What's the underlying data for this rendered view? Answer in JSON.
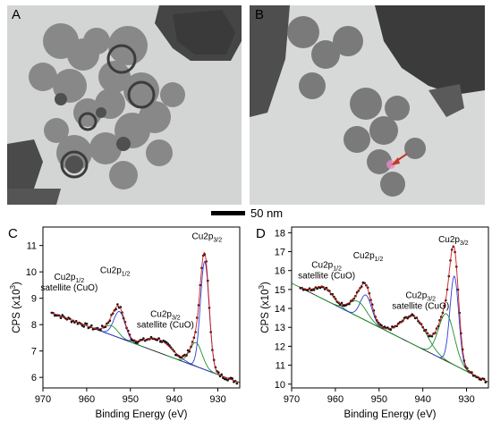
{
  "panels": {
    "a": {
      "letter": "A"
    },
    "b": {
      "letter": "B"
    },
    "c": {
      "letter": "C"
    },
    "d": {
      "letter": "D"
    }
  },
  "scale_bar": {
    "label": "50 nm"
  },
  "colors": {
    "data_points": "#111111",
    "fit_envelope": "#d11b1b",
    "component_1": "#2b3fd6",
    "component_2": "#1f8f2a",
    "background_line": "#1a1a1a",
    "arrow": "#c0392b",
    "tem_background": "#d5d7d6"
  },
  "chart_data": [
    {
      "panel": "C",
      "type": "line",
      "xlabel": "Binding Energy (eV)",
      "ylabel": "CPS (x10",
      "ylabel_sup": "3",
      "ylabel_end": ")",
      "xlim": [
        970,
        925
      ],
      "ylim": [
        5.6,
        11.7
      ],
      "xticks": [
        970,
        960,
        950,
        940,
        930
      ],
      "yticks": [
        6,
        7,
        8,
        9,
        10,
        11
      ],
      "annotations": [
        {
          "base": "Cu2p",
          "sub": "1/2",
          "line2": "satellite (CuO)",
          "x": 964,
          "y": 9.7
        },
        {
          "base": "Cu2p",
          "sub": "1/2",
          "line2": "",
          "x": 953.5,
          "y": 9.95
        },
        {
          "base": "Cu2p",
          "sub": "3/2",
          "line2": "satellite (CuO)",
          "x": 942,
          "y": 8.3
        },
        {
          "base": "Cu2p",
          "sub": "3/2",
          "line2": "",
          "x": 932.5,
          "y": 11.25
        }
      ],
      "background": {
        "x": [
          968,
          925
        ],
        "y": [
          8.45,
          5.8
        ]
      },
      "peaks": [
        {
          "center": 952.5,
          "amplitude": 1.0,
          "width": 1.3,
          "color": "component_1"
        },
        {
          "center": 954.3,
          "amplitude": 0.35,
          "width": 1.5,
          "color": "component_2"
        },
        {
          "center": 943.5,
          "amplitude": 0.5,
          "width": 3.0,
          "color": "component_1"
        },
        {
          "center": 933.0,
          "amplitude": 4.1,
          "width": 1.0,
          "color": "component_1"
        },
        {
          "center": 935.0,
          "amplitude": 0.9,
          "width": 1.4,
          "color": "component_2"
        }
      ]
    },
    {
      "panel": "D",
      "type": "line",
      "xlabel": "Binding Energy (eV)",
      "ylabel": "CPS (x10",
      "ylabel_sup": "3",
      "ylabel_end": ")",
      "xlim": [
        970,
        925
      ],
      "ylim": [
        9.8,
        18.3
      ],
      "xticks": [
        970,
        960,
        950,
        940,
        930
      ],
      "yticks": [
        10,
        11,
        12,
        13,
        14,
        15,
        16,
        17,
        18
      ],
      "annotations": [
        {
          "base": "Cu2p",
          "sub": "1/2",
          "line2": "satellite (CuO)",
          "x": 962,
          "y": 16.15
        },
        {
          "base": "Cu2p",
          "sub": "1/2",
          "line2": "",
          "x": 952.5,
          "y": 16.65
        },
        {
          "base": "Cu2p",
          "sub": "3/2",
          "line2": "satellite (CuO)",
          "x": 940.5,
          "y": 14.55
        },
        {
          "base": "Cu2p",
          "sub": "3/2",
          "line2": "",
          "x": 933,
          "y": 17.5
        }
      ],
      "background": {
        "x": [
          968,
          925
        ],
        "y": [
          15.1,
          10.1
        ]
      },
      "peaks": [
        {
          "center": 962.5,
          "amplitude": 0.65,
          "width": 2.0,
          "color": "component_2"
        },
        {
          "center": 953.0,
          "amplitude": 1.35,
          "width": 1.3,
          "color": "component_1"
        },
        {
          "center": 954.8,
          "amplitude": 0.8,
          "width": 2.0,
          "color": "component_2"
        },
        {
          "center": 942.0,
          "amplitude": 1.5,
          "width": 2.8,
          "color": "component_2"
        },
        {
          "center": 932.8,
          "amplitude": 4.7,
          "width": 1.0,
          "color": "component_1"
        },
        {
          "center": 934.6,
          "amplitude": 2.5,
          "width": 1.8,
          "color": "component_2"
        }
      ]
    }
  ]
}
